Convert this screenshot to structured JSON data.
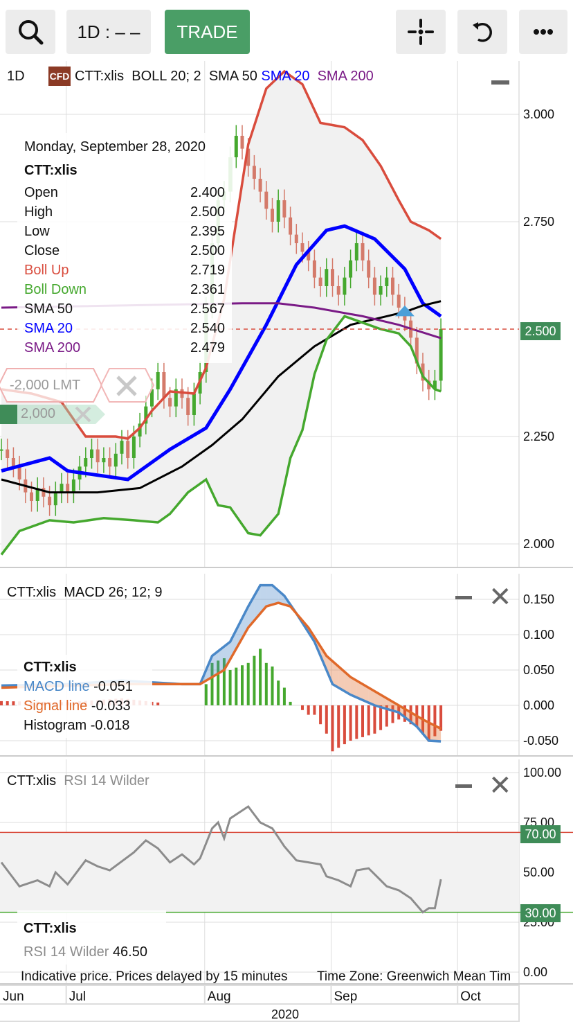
{
  "toolbar": {
    "timeframe": "1D : – –",
    "trade": "TRADE",
    "icons": [
      "search-icon",
      "crosshair-icon",
      "reset-icon",
      "more-icon"
    ]
  },
  "main": {
    "period": "1D",
    "badge": "CFD",
    "symbol": "CTT:xlis",
    "boll": "BOLL 20; 2",
    "sma50": "SMA 50",
    "sma20": "SMA 20",
    "sma200": "SMA 200",
    "tooltip": {
      "date": "Monday, September 28, 2020",
      "symbol": "CTT:xlis",
      "rows": [
        {
          "label": "Open",
          "value": "2.400",
          "color": "#111"
        },
        {
          "label": "High",
          "value": "2.500",
          "color": "#111"
        },
        {
          "label": "Low",
          "value": "2.395",
          "color": "#111"
        },
        {
          "label": "Close",
          "value": "2.500",
          "color": "#111"
        },
        {
          "label": "Boll Up",
          "value": "2.719",
          "color": "#d94c3d"
        },
        {
          "label": "Boll Down",
          "value": "2.361",
          "color": "#45a82e"
        },
        {
          "label": "SMA 50",
          "value": "2.567",
          "color": "#111"
        },
        {
          "label": "SMA 20",
          "value": "2.540",
          "color": "#0000ff"
        },
        {
          "label": "SMA 200",
          "value": "2.479",
          "color": "#7a1a86"
        }
      ]
    },
    "order": {
      "limit": "-2,000 LMT",
      "qty": "2,000"
    },
    "last_price": "2.500"
  },
  "macd_panel": {
    "symbol": "CTT:xlis",
    "title": "MACD 26; 12; 9",
    "legend": {
      "symbol": "CTT:xlis",
      "macd_label": "MACD line",
      "macd": "-0.051",
      "signal_label": "Signal line",
      "signal": "-0.033",
      "hist_label": "Histogram",
      "hist": "-0.018"
    }
  },
  "rsi_panel": {
    "symbol": "CTT:xlis",
    "title": "RSI 14 Wilder",
    "legend": {
      "symbol": "CTT:xlis",
      "label": "RSI 14 Wilder",
      "value": "46.50"
    },
    "upper": "70.00",
    "lower": "30.00"
  },
  "footer": {
    "notice": "Indicative price. Prices delayed by 15 minutes",
    "timezone": "Time Zone: Greenwich Mean Tim",
    "year": "2020"
  },
  "chart_data": [
    {
      "type": "candlestick",
      "ylim": [
        2.0,
        3.1
      ],
      "yticks": [
        "3.000",
        "2.750",
        "2.250",
        "2.000"
      ],
      "ytick_values": [
        3.0,
        2.75,
        2.25,
        2.0
      ],
      "months": [
        {
          "label": "Jun",
          "index": 0
        },
        {
          "label": "Jul",
          "index": 11
        },
        {
          "label": "Aug",
          "index": 34
        },
        {
          "label": "Sep",
          "index": 55
        },
        {
          "label": "Oct",
          "index": 76
        }
      ],
      "closes": [
        2.22,
        2.2,
        2.18,
        2.15,
        2.12,
        2.1,
        2.13,
        2.11,
        2.09,
        2.12,
        2.14,
        2.12,
        2.15,
        2.18,
        2.2,
        2.22,
        2.19,
        2.2,
        2.18,
        2.21,
        2.24,
        2.2,
        2.25,
        2.28,
        2.32,
        2.36,
        2.4,
        2.34,
        2.32,
        2.36,
        2.34,
        2.3,
        2.35,
        2.4,
        2.55,
        2.7,
        2.8,
        2.82,
        2.9,
        2.95,
        2.92,
        2.88,
        2.85,
        2.82,
        2.78,
        2.75,
        2.8,
        2.76,
        2.72,
        2.7,
        2.68,
        2.66,
        2.62,
        2.6,
        2.64,
        2.6,
        2.58,
        2.62,
        2.66,
        2.7,
        2.66,
        2.62,
        2.58,
        2.6,
        2.62,
        2.58,
        2.55,
        2.52,
        2.48,
        2.42,
        2.38,
        2.36,
        2.38,
        2.5
      ],
      "series": [
        {
          "name": "SMA 20",
          "color": "#0000ff",
          "points": [
            [
              0,
              2.17
            ],
            [
              8,
              2.2
            ],
            [
              11,
              2.17
            ],
            [
              21,
              2.15
            ],
            [
              28,
              2.22
            ],
            [
              34,
              2.27
            ],
            [
              38,
              2.36
            ],
            [
              44,
              2.51
            ],
            [
              49,
              2.65
            ],
            [
              54,
              2.73
            ],
            [
              57,
              2.74
            ],
            [
              62,
              2.71
            ],
            [
              67,
              2.64
            ],
            [
              70,
              2.56
            ],
            [
              73,
              2.53
            ]
          ]
        },
        {
          "name": "SMA 50",
          "color": "#000000",
          "points": [
            [
              0,
              2.15
            ],
            [
              8,
              2.12
            ],
            [
              16,
              2.12
            ],
            [
              23,
              2.13
            ],
            [
              30,
              2.18
            ],
            [
              35,
              2.23
            ],
            [
              40,
              2.29
            ],
            [
              46,
              2.39
            ],
            [
              52,
              2.46
            ],
            [
              58,
              2.51
            ],
            [
              64,
              2.53
            ],
            [
              67,
              2.54
            ],
            [
              70,
              2.555
            ],
            [
              73,
              2.565
            ]
          ]
        },
        {
          "name": "SMA 200",
          "color": "#7a1a86",
          "points": [
            [
              0,
              2.55
            ],
            [
              40,
              2.56
            ],
            [
              46,
              2.56
            ],
            [
              52,
              2.55
            ],
            [
              60,
              2.53
            ],
            [
              66,
              2.51
            ],
            [
              73,
              2.479
            ]
          ]
        },
        {
          "name": "Boll Up",
          "color": "#d94c3d",
          "points": [
            [
              0,
              2.36
            ],
            [
              5,
              2.35
            ],
            [
              10,
              2.33
            ],
            [
              14,
              2.25
            ],
            [
              19,
              2.25
            ],
            [
              21,
              2.245
            ],
            [
              23,
              2.27
            ],
            [
              25,
              2.31
            ],
            [
              28,
              2.355
            ],
            [
              32,
              2.35
            ],
            [
              34,
              2.41
            ],
            [
              37,
              2.57
            ],
            [
              41,
              2.93
            ],
            [
              44,
              3.06
            ],
            [
              47,
              3.1
            ],
            [
              50,
              3.07
            ],
            [
              53,
              2.98
            ],
            [
              57,
              2.97
            ],
            [
              60,
              2.94
            ],
            [
              63,
              2.88
            ],
            [
              66,
              2.8
            ],
            [
              68,
              2.75
            ],
            [
              71,
              2.73
            ],
            [
              73,
              2.71
            ]
          ]
        },
        {
          "name": "Boll Down",
          "color": "#45a82e",
          "points": [
            [
              0,
              1.975
            ],
            [
              3,
              2.03
            ],
            [
              8,
              2.055
            ],
            [
              12,
              2.05
            ],
            [
              17,
              2.06
            ],
            [
              22,
              2.055
            ],
            [
              26,
              2.05
            ],
            [
              28,
              2.07
            ],
            [
              31,
              2.12
            ],
            [
              34,
              2.15
            ],
            [
              36,
              2.09
            ],
            [
              38,
              2.085
            ],
            [
              41,
              2.025
            ],
            [
              43,
              2.02
            ],
            [
              46,
              2.07
            ],
            [
              48,
              2.2
            ],
            [
              50,
              2.265
            ],
            [
              52,
              2.395
            ],
            [
              54,
              2.475
            ],
            [
              57,
              2.53
            ],
            [
              60,
              2.515
            ],
            [
              63,
              2.5
            ],
            [
              66,
              2.49
            ],
            [
              68,
              2.46
            ],
            [
              70,
              2.39
            ],
            [
              72,
              2.36
            ],
            [
              73,
              2.355
            ]
          ]
        }
      ]
    },
    {
      "type": "line",
      "ylim": [
        -0.07,
        0.18
      ],
      "yticks": [
        "0.150",
        "0.100",
        "0.050",
        "0.000",
        "-0.050"
      ],
      "ytick_values": [
        0.15,
        0.1,
        0.05,
        0,
        -0.05
      ],
      "series": [
        {
          "name": "MACD line",
          "color": "#4a88c8",
          "points": [
            [
              0,
              0.028
            ],
            [
              11,
              0.03
            ],
            [
              20,
              0.035
            ],
            [
              30,
              0.03
            ],
            [
              33,
              0.03
            ],
            [
              35,
              0.07
            ],
            [
              38,
              0.09
            ],
            [
              41,
              0.14
            ],
            [
              43,
              0.17
            ],
            [
              45,
              0.17
            ],
            [
              47,
              0.155
            ],
            [
              49,
              0.13
            ],
            [
              52,
              0.09
            ],
            [
              55,
              0.03
            ],
            [
              58,
              0.015
            ],
            [
              62,
              0.0
            ],
            [
              66,
              -0.01
            ],
            [
              69,
              -0.03
            ],
            [
              71,
              -0.05
            ],
            [
              73,
              -0.051
            ]
          ]
        },
        {
          "name": "Signal line",
          "color": "#e0692a",
          "points": [
            [
              0,
              0.025
            ],
            [
              20,
              0.03
            ],
            [
              33,
              0.03
            ],
            [
              37,
              0.05
            ],
            [
              41,
              0.11
            ],
            [
              44,
              0.14
            ],
            [
              46,
              0.145
            ],
            [
              48,
              0.14
            ],
            [
              51,
              0.11
            ],
            [
              54,
              0.07
            ],
            [
              58,
              0.04
            ],
            [
              62,
              0.02
            ],
            [
              66,
              0.0
            ],
            [
              70,
              -0.02
            ],
            [
              73,
              -0.033
            ]
          ]
        }
      ]
    },
    {
      "type": "line",
      "ylim": [
        0,
        100
      ],
      "yticks": [
        "100.00",
        "75.00",
        "50.00",
        "25.00",
        "0.00"
      ],
      "ytick_values": [
        100,
        75,
        50,
        25,
        0
      ],
      "levels": [
        70,
        30
      ],
      "series": [
        {
          "name": "RSI 14 Wilder",
          "color": "#8c8c8c",
          "points": [
            [
              0,
              55
            ],
            [
              3,
              43
            ],
            [
              6,
              46
            ],
            [
              8,
              43
            ],
            [
              9,
              50
            ],
            [
              11,
              44
            ],
            [
              14,
              56
            ],
            [
              16,
              53
            ],
            [
              18,
              51
            ],
            [
              22,
              60
            ],
            [
              24,
              66
            ],
            [
              26,
              62
            ],
            [
              28,
              55
            ],
            [
              30,
              59
            ],
            [
              32,
              54
            ],
            [
              33,
              57
            ],
            [
              35,
              72
            ],
            [
              36,
              75
            ],
            [
              37,
              67
            ],
            [
              38,
              77
            ],
            [
              41,
              83
            ],
            [
              43,
              75
            ],
            [
              45,
              72
            ],
            [
              47,
              63
            ],
            [
              49,
              56
            ],
            [
              53,
              54
            ],
            [
              54,
              48
            ],
            [
              56,
              46
            ],
            [
              58,
              43
            ],
            [
              59,
              51
            ],
            [
              61,
              52
            ],
            [
              63,
              46
            ],
            [
              64,
              43
            ],
            [
              66,
              41
            ],
            [
              68,
              37
            ],
            [
              70,
              30
            ],
            [
              71,
              32
            ],
            [
              72,
              32
            ],
            [
              73,
              46.5
            ]
          ]
        }
      ]
    }
  ]
}
